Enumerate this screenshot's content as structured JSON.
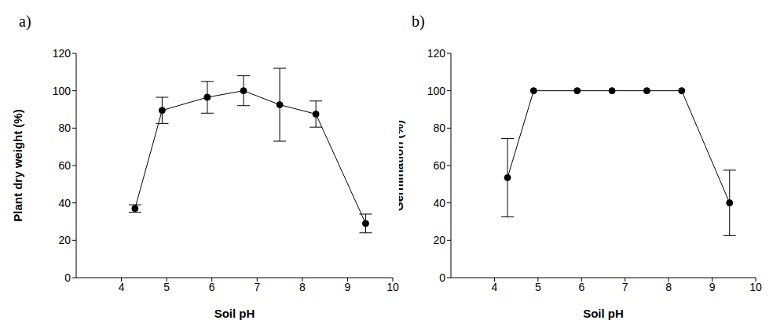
{
  "chart_data": [
    {
      "type": "line",
      "title": "a)",
      "xlabel": "Soil pH",
      "ylabel": "Plant dry weight (%)",
      "x": [
        4.3,
        4.9,
        5.9,
        6.7,
        7.5,
        8.3,
        9.4
      ],
      "values": [
        37,
        89.5,
        96.5,
        100,
        92.5,
        87.5,
        29
      ],
      "errors": [
        2,
        7,
        8.5,
        8,
        19.5,
        7,
        5
      ],
      "color": "#000000",
      "marker": "circle",
      "xlim": [
        3,
        10
      ],
      "xticks": [
        4,
        5,
        6,
        7,
        8,
        9,
        10
      ],
      "ylim": [
        0,
        120
      ],
      "yticks": [
        0,
        20,
        40,
        60,
        80,
        100,
        120
      ]
    },
    {
      "type": "line",
      "title": "b)",
      "xlabel": "Soil pH",
      "ylabel": "Germination (%)",
      "x": [
        4.3,
        4.9,
        5.9,
        6.7,
        7.5,
        8.3,
        9.4
      ],
      "values": [
        53.5,
        100,
        100,
        100,
        100,
        100,
        40
      ],
      "errors": [
        21,
        0,
        0,
        0,
        0,
        0,
        17.5
      ],
      "color": "#000000",
      "marker": "circle",
      "xlim": [
        3,
        10
      ],
      "xticks": [
        4,
        5,
        6,
        7,
        8,
        9,
        10
      ],
      "ylim": [
        0,
        120
      ],
      "yticks": [
        0,
        20,
        40,
        60,
        80,
        100,
        120
      ]
    }
  ]
}
